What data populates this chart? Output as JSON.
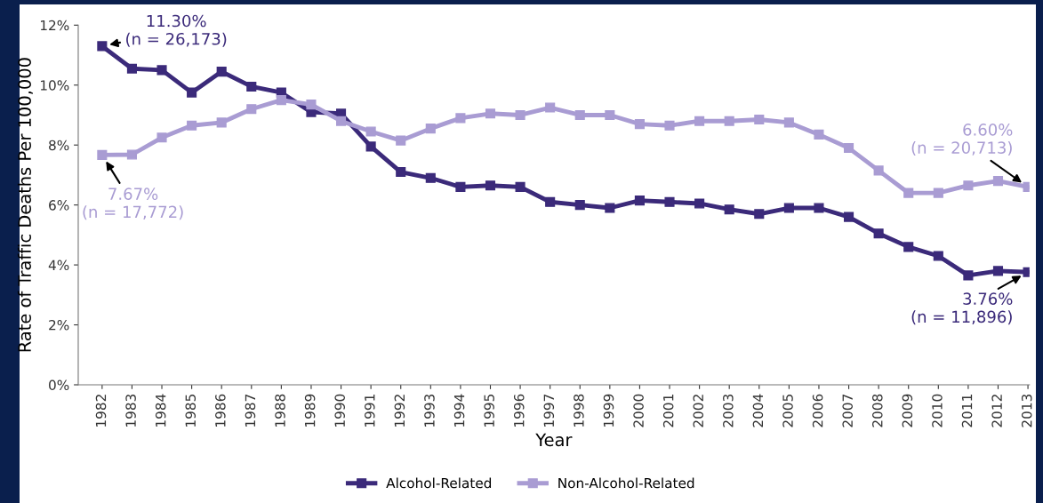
{
  "chart_data": {
    "type": "line",
    "xlabel": "Year",
    "ylabel": "Rate of Traffic Deaths Per 100,000",
    "categories": [
      "1982",
      "1983",
      "1984",
      "1985",
      "1986",
      "1987",
      "1988",
      "1989",
      "1990",
      "1991",
      "1992",
      "1993",
      "1994",
      "1995",
      "1996",
      "1997",
      "1998",
      "1999",
      "2000",
      "2001",
      "2002",
      "2003",
      "2004",
      "2005",
      "2006",
      "2007",
      "2008",
      "2009",
      "2010",
      "2011",
      "2012",
      "2013"
    ],
    "series": [
      {
        "name": "Alcohol-Related",
        "color": "#3b2a7a",
        "values": [
          11.3,
          10.55,
          10.5,
          9.75,
          10.45,
          9.95,
          9.75,
          9.1,
          9.05,
          7.95,
          7.1,
          6.9,
          6.6,
          6.65,
          6.6,
          6.1,
          6.0,
          5.9,
          6.15,
          6.1,
          6.05,
          5.85,
          5.7,
          5.9,
          5.9,
          5.6,
          5.05,
          4.6,
          4.3,
          3.65,
          3.8,
          3.76
        ]
      },
      {
        "name": "Non-Alcohol-Related",
        "color": "#a99cd3",
        "values": [
          7.67,
          7.68,
          8.25,
          8.65,
          8.75,
          9.2,
          9.5,
          9.35,
          8.8,
          8.45,
          8.15,
          8.55,
          8.9,
          9.05,
          9.0,
          9.25,
          9.0,
          9.0,
          8.7,
          8.65,
          8.8,
          8.8,
          8.85,
          8.75,
          8.35,
          7.9,
          7.15,
          6.4,
          6.4,
          6.65,
          6.8,
          6.6
        ]
      }
    ],
    "ylim": [
      0,
      12
    ],
    "yticks": [
      {
        "value": 0,
        "label": "0%"
      },
      {
        "value": 2,
        "label": "2%"
      },
      {
        "value": 4,
        "label": "4%"
      },
      {
        "value": 6,
        "label": "6%"
      },
      {
        "value": 8,
        "label": "8%"
      },
      {
        "value": 10,
        "label": "10%"
      },
      {
        "value": 12,
        "label": "12%"
      }
    ],
    "annotations": [
      {
        "text": "11.30%\n(n = 26,173)",
        "x": "1982",
        "y": 11.3
      },
      {
        "text": "7.67%\n(n = 17,772)",
        "x": "1982",
        "y": 7.67
      },
      {
        "text": "6.60%\n(n = 20,713)",
        "x": "2013",
        "y": 6.6
      },
      {
        "text": "3.76%\n(n = 11,896)",
        "x": "2013",
        "y": 3.76
      }
    ],
    "marker": "square",
    "line_style": "solid",
    "grid": false,
    "legend": "bottom"
  }
}
